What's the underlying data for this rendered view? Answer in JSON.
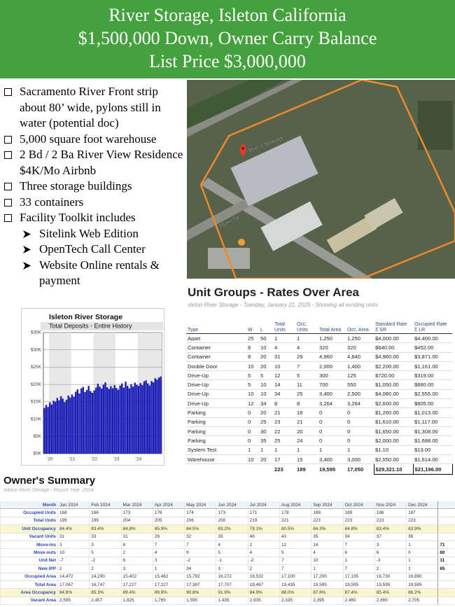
{
  "header": {
    "lines": [
      "River Storage, Isleton California",
      "$1,500,000 Down, Owner Carry Balance",
      "List Price $3,000,000"
    ]
  },
  "bullets": [
    {
      "text": "Sacramento River Front strip about 80’ wide, pylons still in water (potential doc)"
    },
    {
      "text": "5,000 square foot warehouse"
    },
    {
      "text": "2 Bd / 2 Ba  River View Residence $4K/Mo Airbnb"
    },
    {
      "text": "Three storage buildings"
    },
    {
      "text": "33 containers"
    },
    {
      "text": "Facility Toolkit includes",
      "subitems": [
        "Sitelink Web Edition",
        "OpenTech Call Center",
        "Website Online rentals & payment"
      ]
    }
  ],
  "map": {
    "labels": [
      "River Storage",
      "Main St"
    ]
  },
  "chart_data": {
    "type": "bar",
    "title": "Isleton River Storage",
    "subtitle": "Total Deposits - Entire History",
    "categories": [
      null,
      null,
      null,
      "'20",
      null,
      null,
      null,
      null,
      null,
      null,
      null,
      null,
      null,
      null,
      null,
      "'21",
      null,
      null,
      null,
      null,
      null,
      null,
      null,
      null,
      null,
      null,
      null,
      "'22",
      null,
      null,
      null,
      null,
      null,
      null,
      null,
      null,
      null,
      null,
      null,
      "'23",
      null,
      null,
      null,
      null,
      null,
      null,
      null,
      null,
      null,
      null,
      null,
      "'24",
      null,
      null,
      null,
      null,
      null,
      null,
      null,
      null,
      null,
      null,
      null,
      null
    ],
    "values": [
      13200,
      14100,
      13500,
      14800,
      14200,
      15300,
      15000,
      16100,
      15400,
      16600,
      15900,
      14900,
      15600,
      16800,
      16200,
      17100,
      16500,
      17900,
      18600,
      17400,
      18900,
      19300,
      17800,
      18400,
      19600,
      18100,
      17600,
      18300,
      19100,
      20200,
      19400,
      18800,
      19900,
      20600,
      19200,
      18700,
      19500,
      18900,
      19800,
      19000,
      18500,
      19700,
      20300,
      19100,
      20800,
      19600,
      18900,
      20100,
      19400,
      20500,
      19900,
      19600,
      20400,
      19800,
      20900,
      21200,
      20300,
      19700,
      21000,
      20600,
      21800,
      21400,
      22000,
      22300
    ],
    "color": "#1a1ab4",
    "ylim": [
      0,
      35000
    ],
    "yticks": [
      {
        "value": 0,
        "label": "$0K"
      },
      {
        "value": 5000,
        "label": "$5K"
      },
      {
        "value": 10000,
        "label": "$10K"
      },
      {
        "value": 15000,
        "label": "$15K"
      },
      {
        "value": 20000,
        "label": "$20K"
      },
      {
        "value": 25000,
        "label": "$25K"
      },
      {
        "value": 30000,
        "label": "$30K"
      },
      {
        "value": 35000,
        "label": "$35K"
      }
    ],
    "grid": true
  },
  "unit_groups": {
    "title": "Unit Groups - Rates Over Area",
    "subtitle": "sleton River Storage - Tuesday, January 21, 2025 - Showing all existing units",
    "columns": [
      "Type",
      "W",
      "L",
      "Total Units",
      "Occ. Units",
      "Total Area",
      "Occ. Area",
      "Standard Rate",
      "Occupied Rate"
    ],
    "sum_labels": [
      "Σ SR",
      "Σ LR"
    ],
    "rows": [
      [
        "Apart",
        "25",
        "50",
        "1",
        "1",
        "1,250",
        "1,250",
        "$4,000.00",
        "$4,400.00"
      ],
      [
        "Container",
        "8",
        "10",
        "4",
        "4",
        "320",
        "320",
        "$640.00",
        "$452.00"
      ],
      [
        "Container",
        "8",
        "20",
        "31",
        "29",
        "4,960",
        "4,640",
        "$4,960.00",
        "$3,871.00"
      ],
      [
        "Double Door",
        "10",
        "20",
        "10",
        "7",
        "2,000",
        "1,400",
        "$2,200.00",
        "$1,161.00"
      ],
      [
        "Drive-Up",
        "5",
        "5",
        "12",
        "5",
        "300",
        "125",
        "$720.00",
        "$319.00"
      ],
      [
        "Drive-Up",
        "5",
        "10",
        "14",
        "11",
        "700",
        "550",
        "$1,050.00",
        "$880.00"
      ],
      [
        "Drive-Up",
        "10",
        "10",
        "34",
        "25",
        "3,400",
        "2,500",
        "$4,080.00",
        "$2,555.00"
      ],
      [
        "Drive-Up",
        "12",
        "34",
        "8",
        "8",
        "3,264",
        "3,264",
        "$2,600.00",
        "$805.00"
      ],
      [
        "Parking",
        "0",
        "20",
        "21",
        "18",
        "0",
        "0",
        "$1,260.00",
        "$1,013.00"
      ],
      [
        "Parking",
        "0",
        "25",
        "23",
        "21",
        "0",
        "0",
        "$1,610.00",
        "$1,117.00"
      ],
      [
        "Parking",
        "0",
        "30",
        "22",
        "20",
        "0",
        "0",
        "$1,650.00",
        "$1,308.00"
      ],
      [
        "Parking",
        "0",
        "35",
        "25",
        "24",
        "0",
        "0",
        "$2,000.00",
        "$1,688.00"
      ],
      [
        "System Test",
        "1",
        "1",
        "1",
        "1",
        "1",
        "1",
        "$1.10",
        "$13.00"
      ],
      [
        "Warehouse",
        "10",
        "20",
        "17",
        "15",
        "3,400",
        "3,000",
        "$2,550.00",
        "$1,614.00"
      ]
    ],
    "totals": [
      "223",
      "189",
      "19,595",
      "17,050",
      "$29,321.10",
      "$21,196.00"
    ]
  },
  "owners_summary": {
    "title": "Owner's Summary",
    "subtitle": "Isleton River Storage - Report Year: 2024",
    "header": [
      "Month",
      "Jan 2024",
      "Feb 2024",
      "Mar 2024",
      "Apr 2024",
      "May 2024",
      "Jun 2024",
      "Jul 2024",
      "Aug 2024",
      "Sep 2024",
      "Oct 2024",
      "Nov 2024",
      "Dec 2024"
    ],
    "rows": [
      {
        "label": "Occupied Units",
        "values": [
          "168",
          "166",
          "173",
          "176",
          "174",
          "173",
          "171",
          "178",
          "188",
          "189",
          "186",
          "187"
        ]
      },
      {
        "label": "Total Units",
        "values": [
          "199",
          "199",
          "204",
          "205",
          "206",
          "208",
          "219",
          "221",
          "223",
          "223",
          "223",
          "223"
        ]
      },
      {
        "label": "Unit Occupancy",
        "values": [
          "84.4%",
          "83.4%",
          "84.8%",
          "85.9%",
          "84.5%",
          "83.2%",
          "78.1%",
          "80.5%",
          "84.3%",
          "84.8%",
          "83.4%",
          "83.9%"
        ]
      },
      {
        "label": "Vacant Units",
        "values": [
          "31",
          "33",
          "31",
          "29",
          "32",
          "35",
          "48",
          "43",
          "35",
          "34",
          "37",
          "36"
        ]
      },
      {
        "label": "Move-ins",
        "values": [
          "3",
          "3",
          "8",
          "7",
          "7",
          "4",
          "2",
          "12",
          "14",
          "7",
          "3",
          "1"
        ],
        "total": "71"
      },
      {
        "label": "Move-outs",
        "values": [
          "10",
          "5",
          "2",
          "4",
          "9",
          "5",
          "4",
          "5",
          "4",
          "6",
          "6",
          "0"
        ],
        "total": "60"
      },
      {
        "label": "Unit Net",
        "values": [
          "-7",
          "-2",
          "6",
          "3",
          "-2",
          "-1",
          "-2",
          "7",
          "10",
          "1",
          "-3",
          "1"
        ],
        "total": "11"
      },
      {
        "label": "New IPP",
        "values": [
          "2",
          "2",
          "3",
          "1",
          "34",
          "3",
          "2",
          "7",
          "1",
          "7",
          "2",
          "1"
        ],
        "total": "65"
      },
      {
        "label": "Occupied Area",
        "values": [
          "14,472",
          "14,290",
          "15,402",
          "15,462",
          "15,792",
          "16,272",
          "16,532",
          "17,100",
          "17,200",
          "17,135",
          "16,730",
          "16,890"
        ]
      },
      {
        "label": "Total Area",
        "values": [
          "17,067",
          "16,747",
          "17,227",
          "17,227",
          "17,387",
          "17,707",
          "19,467",
          "19,435",
          "19,595",
          "19,595",
          "19,595",
          "19,595"
        ]
      },
      {
        "label": "Area Occupancy",
        "values": [
          "84.8%",
          "85.3%",
          "89.4%",
          "89.8%",
          "90.8%",
          "91.9%",
          "84.9%",
          "88.0%",
          "87.8%",
          "87.4%",
          "85.4%",
          "86.2%"
        ]
      },
      {
        "label": "Vacant Area",
        "values": [
          "2,595",
          "2,457",
          "1,825",
          "1,765",
          "1,595",
          "1,435",
          "2,935",
          "2,335",
          "2,395",
          "2,460",
          "2,865",
          "2,705"
        ]
      }
    ]
  }
}
